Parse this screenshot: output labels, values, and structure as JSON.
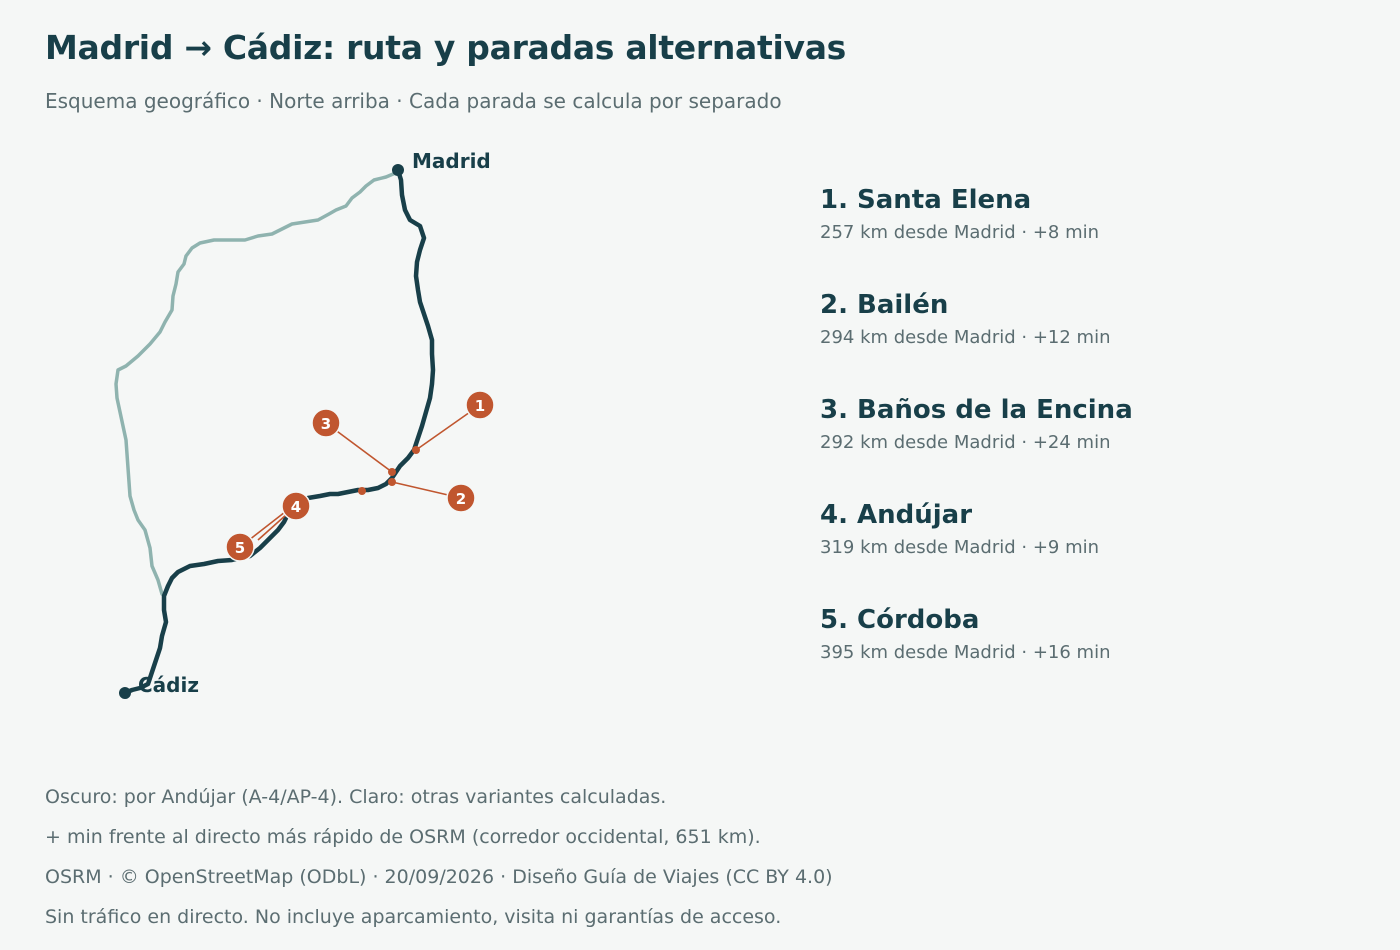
{
  "header": {
    "title": "Madrid → Cádiz: ruta y paradas alternativas",
    "subtitle": "Esquema geográfico · Norte arriba · Cada parada se calcula por separado"
  },
  "map": {
    "orientation": "north-up",
    "route_color": "#183f49",
    "alt_route_color": "#8fb3af",
    "stop_color": "#c0562f",
    "endpoints": [
      {
        "label": "Madrid"
      },
      {
        "label": "Cádiz"
      }
    ],
    "stop_markers": [
      {
        "label": "1"
      },
      {
        "label": "2"
      },
      {
        "label": "3"
      },
      {
        "label": "4"
      },
      {
        "label": "5"
      }
    ]
  },
  "stops": [
    {
      "name": "1. Santa Elena",
      "detail": "257 km desde Madrid · +8 min"
    },
    {
      "name": "2. Bailén",
      "detail": "294 km desde Madrid · +12 min"
    },
    {
      "name": "3. Baños de la Encina",
      "detail": "292 km desde Madrid · +24 min"
    },
    {
      "name": "4. Andújar",
      "detail": "319 km desde Madrid · +9 min"
    },
    {
      "name": "5. Córdoba",
      "detail": "395 km desde Madrid · +16 min"
    }
  ],
  "notes": [
    "Oscuro: por Andújar (A-4/AP-4). Claro: otras variantes calculadas.",
    "+ min frente al directo más rápido de OSRM (corredor occidental, 651 km).",
    "OSRM · © OpenStreetMap (ODbL) · 20/09/2026 · Diseño Guía de Viajes (CC BY 4.0)",
    "Sin tráfico en directo. No incluye aparcamiento, visita ni garantías de acceso."
  ]
}
